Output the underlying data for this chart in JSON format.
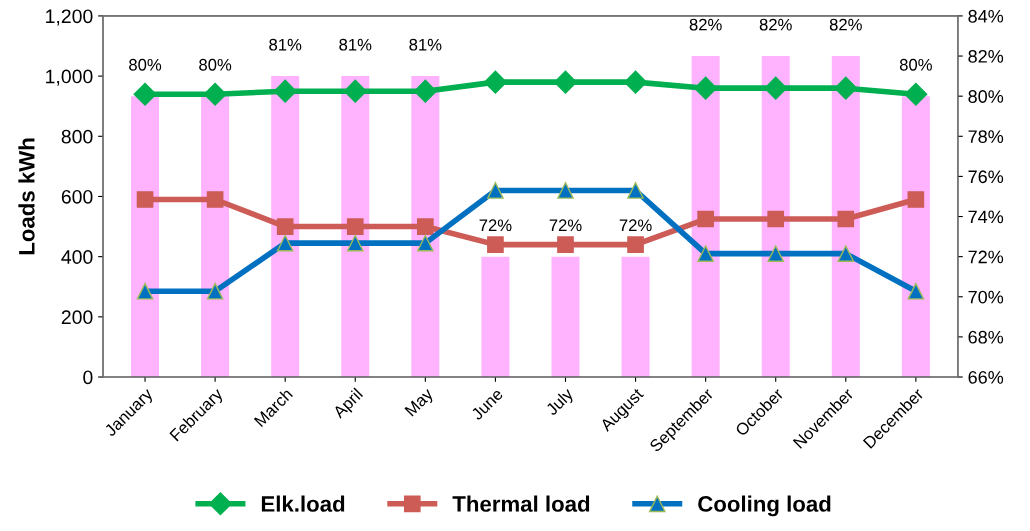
{
  "chart_data": {
    "type": "line",
    "ylabel": "Loads kWh",
    "categories": [
      "January",
      "February",
      "March",
      "April",
      "May",
      "June",
      "July",
      "August",
      "September",
      "October",
      "November",
      "December"
    ],
    "series": [
      {
        "type": "bar",
        "axis": "y2",
        "color": "#ffb3ff",
        "values": [
          80,
          80,
          81,
          81,
          81,
          72,
          72,
          72,
          82,
          82,
          82,
          80
        ],
        "value_labels": [
          "80%",
          "80%",
          "81%",
          "81%",
          "81%",
          "72%",
          "72%",
          "72%",
          "82%",
          "82%",
          "82%",
          "80%"
        ]
      },
      {
        "name": "Elk.load",
        "color": "#00b050",
        "marker": "diamond",
        "values": [
          940,
          940,
          950,
          950,
          950,
          980,
          980,
          980,
          960,
          960,
          960,
          940
        ]
      },
      {
        "name": "Thermal load",
        "color": "#cd5c57",
        "marker": "square",
        "values": [
          590,
          590,
          500,
          500,
          500,
          440,
          440,
          440,
          525,
          525,
          525,
          590
        ]
      },
      {
        "name": "Cooling load",
        "color": "#0070c0",
        "marker": "triangle",
        "values": [
          285,
          285,
          445,
          445,
          445,
          620,
          620,
          620,
          410,
          410,
          410,
          285
        ]
      }
    ],
    "ylim": [
      0,
      1200
    ],
    "yticks": [
      0,
      200,
      400,
      600,
      800,
      {
        "value": 1000,
        "label": "1,000"
      },
      {
        "value": 1200,
        "label": "1,200"
      }
    ],
    "y2lim": [
      66,
      84
    ],
    "y2ticks": [
      {
        "value": 66,
        "label": "66%"
      },
      {
        "value": 68,
        "label": "68%"
      },
      {
        "value": 70,
        "label": "70%"
      },
      {
        "value": 72,
        "label": "72%"
      },
      {
        "value": 74,
        "label": "74%"
      },
      {
        "value": 76,
        "label": "76%"
      },
      {
        "value": 78,
        "label": "78%"
      },
      {
        "value": 80,
        "label": "80%"
      },
      {
        "value": 82,
        "label": "82%"
      },
      {
        "value": 84,
        "label": "84%"
      }
    ],
    "legend": "bottom",
    "grid": false,
    "line_style": "solid"
  }
}
